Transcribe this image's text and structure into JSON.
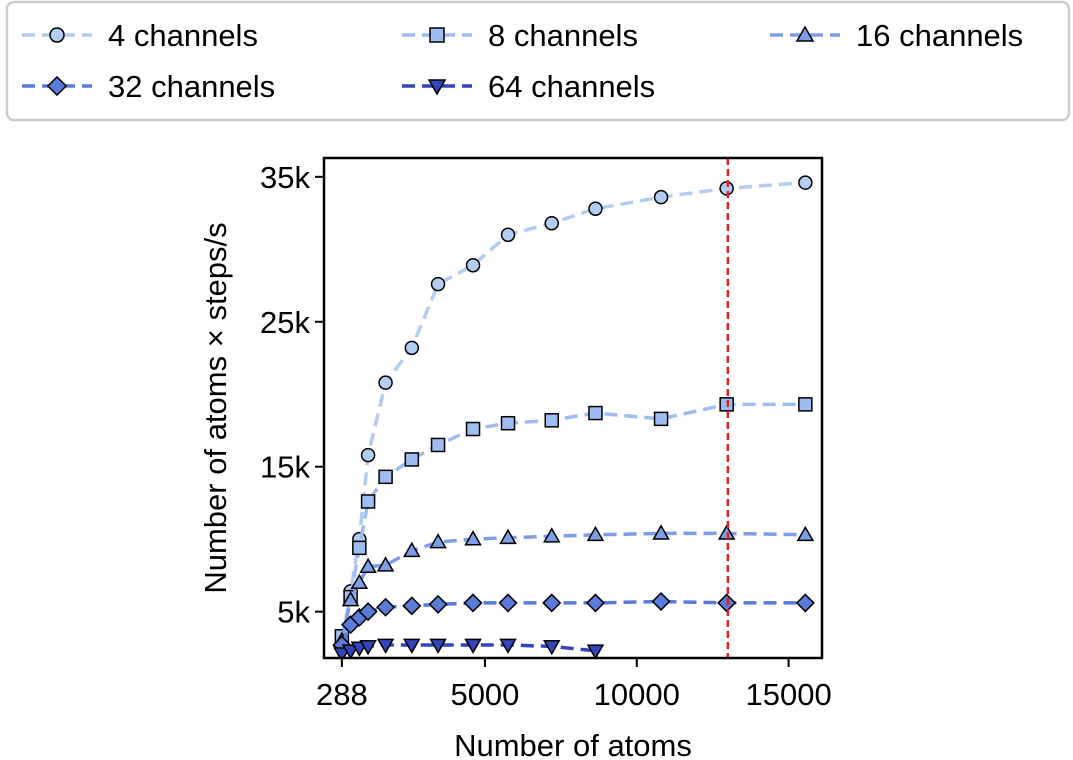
{
  "chart_data": {
    "type": "line",
    "xlabel": "Number of atoms",
    "ylabel": "Number of atoms × steps/s",
    "xlim": [
      -300,
      16100
    ],
    "ylim": [
      1800,
      36300
    ],
    "x_ticks": [
      288,
      5000,
      10000,
      15000
    ],
    "x_tick_labels": [
      "288",
      "5000",
      "10000",
      "15000"
    ],
    "y_ticks": [
      5000,
      15000,
      25000,
      35000
    ],
    "y_tick_labels": [
      "5k",
      "15k",
      "25k",
      "35k"
    ],
    "grid": false,
    "legend_position": "top",
    "reference_line": {
      "x": 13000,
      "color": "#dd2222",
      "style": "dashed"
    },
    "series": [
      {
        "name": "4 channels",
        "marker": "circle",
        "color": "#b3cdf2",
        "x": [
          288,
          576,
          864,
          1152,
          1728,
          2592,
          3456,
          4608,
          5760,
          7200,
          8640,
          10800,
          12960,
          15552
        ],
        "y": [
          2800,
          6400,
          10000,
          15800,
          20800,
          23200,
          27600,
          28900,
          31000,
          31800,
          32800,
          33600,
          34200,
          34600
        ]
      },
      {
        "name": "8 channels",
        "marker": "square",
        "color": "#9fbdf0",
        "x": [
          288,
          576,
          864,
          1152,
          1728,
          2592,
          3456,
          4608,
          5760,
          7200,
          8640,
          10800,
          12960,
          15552
        ],
        "y": [
          3300,
          6000,
          9400,
          12600,
          14300,
          15500,
          16500,
          17600,
          18000,
          18200,
          18700,
          18300,
          19300,
          19300
        ]
      },
      {
        "name": "16 channels",
        "marker": "triangle-up",
        "color": "#7d9de6",
        "x": [
          288,
          576,
          864,
          1152,
          1728,
          2592,
          3456,
          4608,
          5760,
          7200,
          8640,
          10800,
          12960,
          15552
        ],
        "y": [
          3000,
          5800,
          7000,
          8100,
          8200,
          9200,
          9800,
          10000,
          10100,
          10200,
          10300,
          10400,
          10400,
          10300
        ]
      },
      {
        "name": "32 channels",
        "marker": "diamond",
        "color": "#5a7bd8",
        "x": [
          288,
          576,
          864,
          1152,
          1728,
          2592,
          3456,
          4608,
          5760,
          7200,
          8640,
          10800,
          12960,
          15552
        ],
        "y": [
          2700,
          4100,
          4600,
          5000,
          5300,
          5400,
          5500,
          5600,
          5600,
          5600,
          5600,
          5700,
          5600,
          5600
        ]
      },
      {
        "name": "64 channels",
        "marker": "triangle-down",
        "color": "#3343b8",
        "x": [
          288,
          576,
          864,
          1152,
          1728,
          2592,
          3456,
          4608,
          5760,
          7200,
          8640
        ],
        "y": [
          2100,
          2300,
          2500,
          2600,
          2700,
          2700,
          2700,
          2700,
          2700,
          2600,
          2300
        ]
      }
    ]
  }
}
